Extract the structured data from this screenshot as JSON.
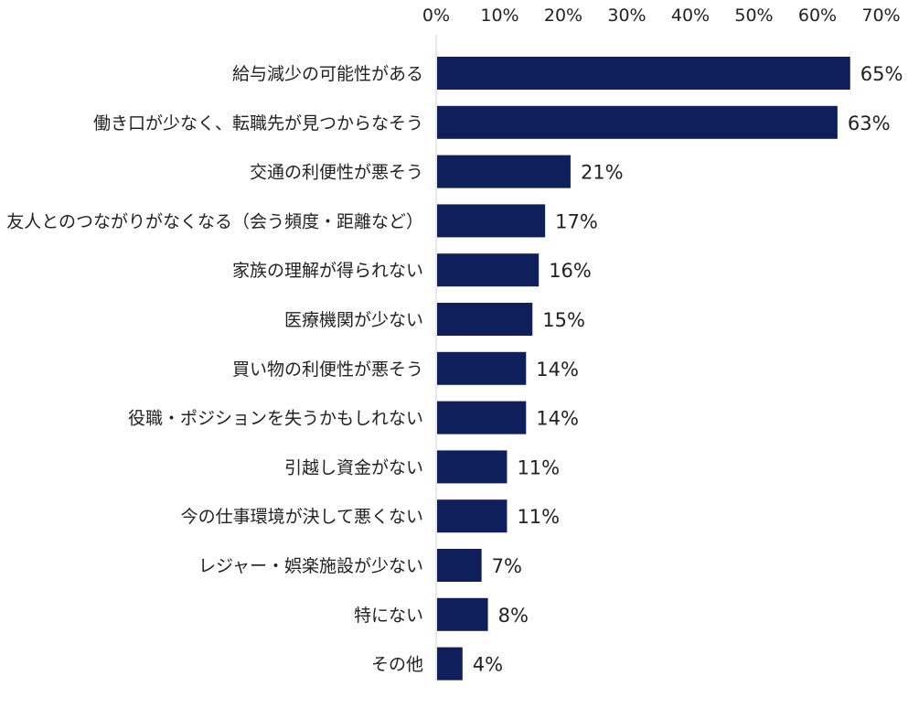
{
  "chart_data": {
    "type": "bar",
    "orientation": "horizontal",
    "title": "",
    "xlabel": "",
    "ylabel": "",
    "xlim": [
      0,
      70
    ],
    "x_ticks": [
      "0%",
      "10%",
      "20%",
      "30%",
      "40%",
      "50%",
      "60%",
      "70%"
    ],
    "x_tick_values": [
      0,
      10,
      20,
      30,
      40,
      50,
      60,
      70
    ],
    "axis_position": "top",
    "grid": false,
    "legend": "none",
    "bar_color": "#0e1f5b",
    "categories": [
      "給与減少の可能性がある",
      "働き口が少なく、転職先が見つからなそう",
      "交通の利便性が悪そう",
      "友人とのつながりがなくなる（会う頻度・距離など）",
      "家族の理解が得られない",
      "医療機関が少ない",
      "買い物の利便性が悪そう",
      "役職・ポジションを失うかもしれない",
      "引越し資金がない",
      "今の仕事環境が決して悪くない",
      "レジャー・娯楽施設が少ない",
      "特にない",
      "その他"
    ],
    "values": [
      65,
      63,
      21,
      17,
      16,
      15,
      14,
      14,
      11,
      11,
      7,
      8,
      4
    ],
    "value_labels": [
      "65%",
      "63%",
      "21%",
      "17%",
      "16%",
      "15%",
      "14%",
      "14%",
      "11%",
      "11%",
      "7%",
      "8%",
      "4%"
    ],
    "series": [
      {
        "values": [
          65,
          63,
          21,
          17,
          16,
          15,
          14,
          14,
          11,
          11,
          7,
          8,
          4
        ]
      }
    ]
  }
}
